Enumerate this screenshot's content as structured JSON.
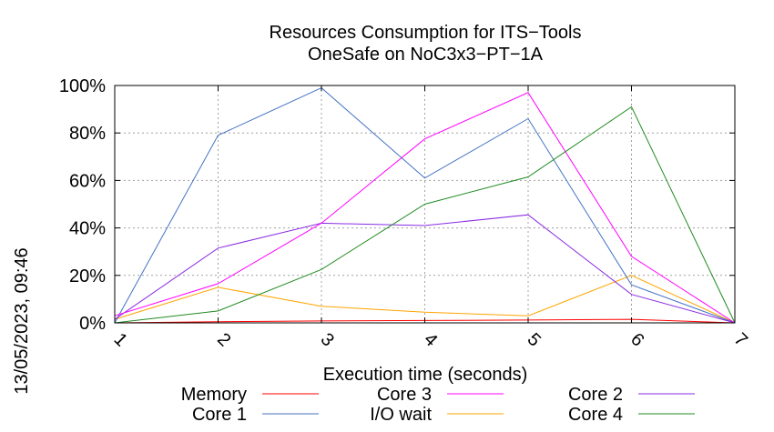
{
  "chart_data": {
    "type": "line",
    "title": "Resources Consumption for ITS−Tools",
    "subtitle": "OneSafe on NoC3x3−PT−1A",
    "xlabel": "Execution time (seconds)",
    "ylabel": "",
    "side_label": "13/05/2023, 09:46",
    "x": [
      1,
      2,
      3,
      4,
      5,
      6,
      7
    ],
    "xlim": [
      1,
      7
    ],
    "ylim": [
      0,
      100
    ],
    "x_ticks": [
      "1",
      "2",
      "3",
      "4",
      "5",
      "6",
      "7"
    ],
    "y_ticks": [
      "0%",
      "20%",
      "40%",
      "60%",
      "80%",
      "100%"
    ],
    "y_tick_values": [
      0,
      20,
      40,
      60,
      80,
      100
    ],
    "grid": true,
    "legend_position": "bottom",
    "series": [
      {
        "name": "Memory",
        "color": "#ff0000",
        "values": [
          0,
          0.5,
          0.8,
          1,
          1.2,
          1.5,
          0
        ]
      },
      {
        "name": "I/O wait",
        "color": "#ffa500",
        "values": [
          1.5,
          15,
          7,
          4.5,
          3,
          20,
          0
        ]
      },
      {
        "name": "Core 1",
        "color": "#4472c4",
        "values": [
          0,
          79,
          99,
          61,
          86,
          16,
          0
        ]
      },
      {
        "name": "Core 2",
        "color": "#8a2be2",
        "values": [
          1.5,
          31.5,
          42,
          41,
          45.5,
          12,
          0
        ]
      },
      {
        "name": "Core 3",
        "color": "#ff00ff",
        "values": [
          3,
          16.5,
          42,
          77.5,
          97,
          28,
          0
        ]
      },
      {
        "name": "Core 4",
        "color": "#228b22",
        "values": [
          0,
          5,
          22.5,
          50,
          61.5,
          91,
          0
        ]
      }
    ],
    "legend_order": [
      0,
      2,
      4,
      1,
      3,
      5
    ]
  }
}
